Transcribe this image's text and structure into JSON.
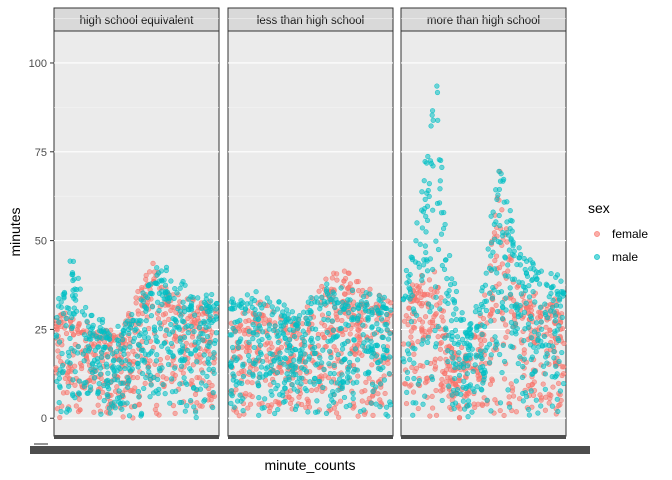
{
  "chart_data": {
    "type": "scatter",
    "xlabel": "minute_counts",
    "ylabel": "minutes",
    "ylim": [
      -5,
      109
    ],
    "y_ticks": [
      0,
      25,
      50,
      75,
      100
    ],
    "grid": true,
    "facets": [
      "high school equivalent",
      "less than high school",
      "more than high school"
    ],
    "legend": {
      "title": "sex",
      "position": "right",
      "entries": [
        {
          "name": "female",
          "color": "#F8766D"
        },
        {
          "name": "male",
          "color": "#00BFC4"
        }
      ]
    },
    "series": [
      {
        "name": "female",
        "color": "#F8766D",
        "profiles": [
          {
            "facet": "high school equivalent",
            "x": [
              0,
              0.1,
              0.2,
              0.3,
              0.4,
              0.5,
              0.6,
              0.7,
              0.8,
              0.9,
              1.0
            ],
            "y_max": [
              31,
              29,
              27,
              25,
              27,
              38,
              44,
              36,
              34,
              33,
              33
            ]
          },
          {
            "facet": "less than high school",
            "x": [
              0,
              0.1,
              0.2,
              0.3,
              0.4,
              0.5,
              0.6,
              0.7,
              0.8,
              0.9,
              1.0
            ],
            "y_max": [
              29,
              31,
              33,
              30,
              27,
              33,
              40,
              42,
              39,
              36,
              34
            ]
          },
          {
            "facet": "more than high school",
            "x": [
              0,
              0.1,
              0.2,
              0.3,
              0.4,
              0.5,
              0.6,
              0.7,
              0.8,
              0.9,
              1.0
            ],
            "y_max": [
              34,
              40,
              42,
              20,
              20,
              32,
              70,
              38,
              36,
              34,
              33
            ]
          }
        ]
      },
      {
        "name": "male",
        "color": "#00BFC4",
        "profiles": [
          {
            "facet": "high school equivalent",
            "x": [
              0,
              0.1,
              0.2,
              0.3,
              0.4,
              0.5,
              0.6,
              0.7,
              0.8,
              0.9,
              1.0
            ],
            "y_max": [
              31,
              47,
              30,
              28,
              26,
              32,
              42,
              44,
              38,
              35,
              36
            ]
          },
          {
            "facet": "less than high school",
            "x": [
              0,
              0.1,
              0.2,
              0.3,
              0.4,
              0.5,
              0.6,
              0.7,
              0.8,
              0.9,
              1.0
            ],
            "y_max": [
              34,
              36,
              37,
              33,
              30,
              34,
              38,
              37,
              36,
              35,
              34
            ]
          },
          {
            "facet": "more than high school",
            "x": [
              0,
              0.1,
              0.2,
              0.3,
              0.4,
              0.5,
              0.6,
              0.7,
              0.8,
              0.9,
              1.0
            ],
            "y_max": [
              38,
              60,
              104,
              42,
              24,
              42,
              74,
              52,
              45,
              42,
              40
            ]
          }
        ]
      }
    ]
  }
}
